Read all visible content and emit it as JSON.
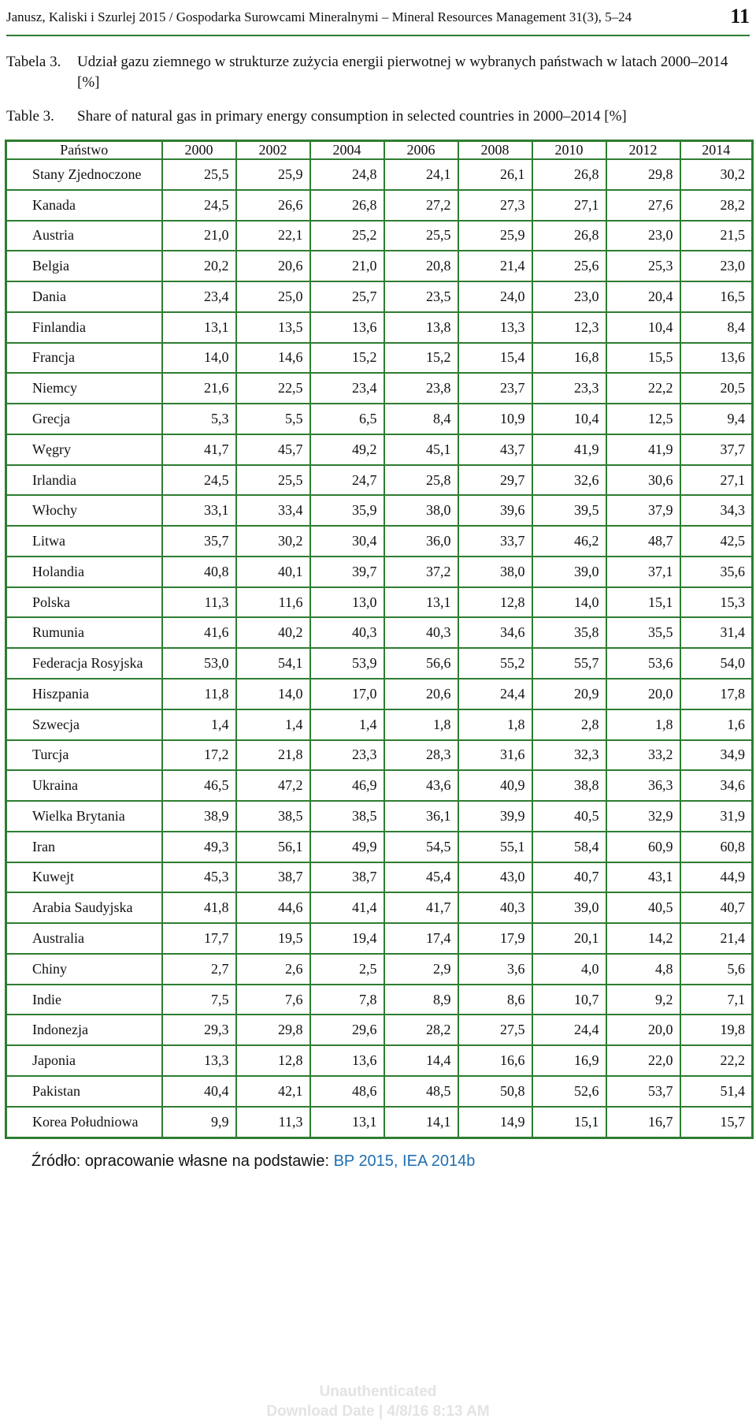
{
  "header": {
    "citation": "Janusz, Kaliski i Szurlej 2015 / Gospodarka Surowcami Mineralnymi – Mineral Resources Management 31(3), 5–24",
    "page_number": "11"
  },
  "caption_pl": {
    "label": "Tabela 3.",
    "text": "Udział gazu ziemnego w strukturze zużycia energii pierwotnej w wybranych państwach w latach 2000–2014 [%]"
  },
  "caption_en": {
    "label": "Table 3.",
    "text": "Share of natural gas in primary energy consumption in selected countries in 2000–2014 [%]"
  },
  "table": {
    "headers": [
      "Państwo",
      "2000",
      "2002",
      "2004",
      "2006",
      "2008",
      "2010",
      "2012",
      "2014"
    ],
    "rows": [
      [
        "Stany Zjednoczone",
        "25,5",
        "25,9",
        "24,8",
        "24,1",
        "26,1",
        "26,8",
        "29,8",
        "30,2"
      ],
      [
        "Kanada",
        "24,5",
        "26,6",
        "26,8",
        "27,2",
        "27,3",
        "27,1",
        "27,6",
        "28,2"
      ],
      [
        "Austria",
        "21,0",
        "22,1",
        "25,2",
        "25,5",
        "25,9",
        "26,8",
        "23,0",
        "21,5"
      ],
      [
        "Belgia",
        "20,2",
        "20,6",
        "21,0",
        "20,8",
        "21,4",
        "25,6",
        "25,3",
        "23,0"
      ],
      [
        "Dania",
        "23,4",
        "25,0",
        "25,7",
        "23,5",
        "24,0",
        "23,0",
        "20,4",
        "16,5"
      ],
      [
        "Finlandia",
        "13,1",
        "13,5",
        "13,6",
        "13,8",
        "13,3",
        "12,3",
        "10,4",
        "8,4"
      ],
      [
        "Francja",
        "14,0",
        "14,6",
        "15,2",
        "15,2",
        "15,4",
        "16,8",
        "15,5",
        "13,6"
      ],
      [
        "Niemcy",
        "21,6",
        "22,5",
        "23,4",
        "23,8",
        "23,7",
        "23,3",
        "22,2",
        "20,5"
      ],
      [
        "Grecja",
        "5,3",
        "5,5",
        "6,5",
        "8,4",
        "10,9",
        "10,4",
        "12,5",
        "9,4"
      ],
      [
        "Węgry",
        "41,7",
        "45,7",
        "49,2",
        "45,1",
        "43,7",
        "41,9",
        "41,9",
        "37,7"
      ],
      [
        "Irlandia",
        "24,5",
        "25,5",
        "24,7",
        "25,8",
        "29,7",
        "32,6",
        "30,6",
        "27,1"
      ],
      [
        "Włochy",
        "33,1",
        "33,4",
        "35,9",
        "38,0",
        "39,6",
        "39,5",
        "37,9",
        "34,3"
      ],
      [
        "Litwa",
        "35,7",
        "30,2",
        "30,4",
        "36,0",
        "33,7",
        "46,2",
        "48,7",
        "42,5"
      ],
      [
        "Holandia",
        "40,8",
        "40,1",
        "39,7",
        "37,2",
        "38,0",
        "39,0",
        "37,1",
        "35,6"
      ],
      [
        "Polska",
        "11,3",
        "11,6",
        "13,0",
        "13,1",
        "12,8",
        "14,0",
        "15,1",
        "15,3"
      ],
      [
        "Rumunia",
        "41,6",
        "40,2",
        "40,3",
        "40,3",
        "34,6",
        "35,8",
        "35,5",
        "31,4"
      ],
      [
        "Federacja Rosyjska",
        "53,0",
        "54,1",
        "53,9",
        "56,6",
        "55,2",
        "55,7",
        "53,6",
        "54,0"
      ],
      [
        "Hiszpania",
        "11,8",
        "14,0",
        "17,0",
        "20,6",
        "24,4",
        "20,9",
        "20,0",
        "17,8"
      ],
      [
        "Szwecja",
        "1,4",
        "1,4",
        "1,4",
        "1,8",
        "1,8",
        "2,8",
        "1,8",
        "1,6"
      ],
      [
        "Turcja",
        "17,2",
        "21,8",
        "23,3",
        "28,3",
        "31,6",
        "32,3",
        "33,2",
        "34,9"
      ],
      [
        "Ukraina",
        "46,5",
        "47,2",
        "46,9",
        "43,6",
        "40,9",
        "38,8",
        "36,3",
        "34,6"
      ],
      [
        "Wielka Brytania",
        "38,9",
        "38,5",
        "38,5",
        "36,1",
        "39,9",
        "40,5",
        "32,9",
        "31,9"
      ],
      [
        "Iran",
        "49,3",
        "56,1",
        "49,9",
        "54,5",
        "55,1",
        "58,4",
        "60,9",
        "60,8"
      ],
      [
        "Kuwejt",
        "45,3",
        "38,7",
        "38,7",
        "45,4",
        "43,0",
        "40,7",
        "43,1",
        "44,9"
      ],
      [
        "Arabia Saudyjska",
        "41,8",
        "44,6",
        "41,4",
        "41,7",
        "40,3",
        "39,0",
        "40,5",
        "40,7"
      ],
      [
        "Australia",
        "17,7",
        "19,5",
        "19,4",
        "17,4",
        "17,9",
        "20,1",
        "14,2",
        "21,4"
      ],
      [
        "Chiny",
        "2,7",
        "2,6",
        "2,5",
        "2,9",
        "3,6",
        "4,0",
        "4,8",
        "5,6"
      ],
      [
        "Indie",
        "7,5",
        "7,6",
        "7,8",
        "8,9",
        "8,6",
        "10,7",
        "9,2",
        "7,1"
      ],
      [
        "Indonezja",
        "29,3",
        "29,8",
        "29,6",
        "28,2",
        "27,5",
        "24,4",
        "20,0",
        "19,8"
      ],
      [
        "Japonia",
        "13,3",
        "12,8",
        "13,6",
        "14,4",
        "16,6",
        "16,9",
        "22,0",
        "22,2"
      ],
      [
        "Pakistan",
        "40,4",
        "42,1",
        "48,6",
        "48,5",
        "50,8",
        "52,6",
        "53,7",
        "51,4"
      ],
      [
        "Korea Południowa",
        "9,9",
        "11,3",
        "13,1",
        "14,1",
        "14,9",
        "15,1",
        "16,7",
        "15,7"
      ]
    ]
  },
  "source": {
    "prefix": "Źródło: opracowanie własne na podstawie: ",
    "reference": "BP 2015, IEA 2014b"
  },
  "watermark": {
    "line1": "Unauthenticated",
    "line2": "Download Date | 4/8/16 8:13 AM"
  },
  "colors": {
    "table_border": "#2e7d32",
    "link": "#1f6fb2"
  }
}
